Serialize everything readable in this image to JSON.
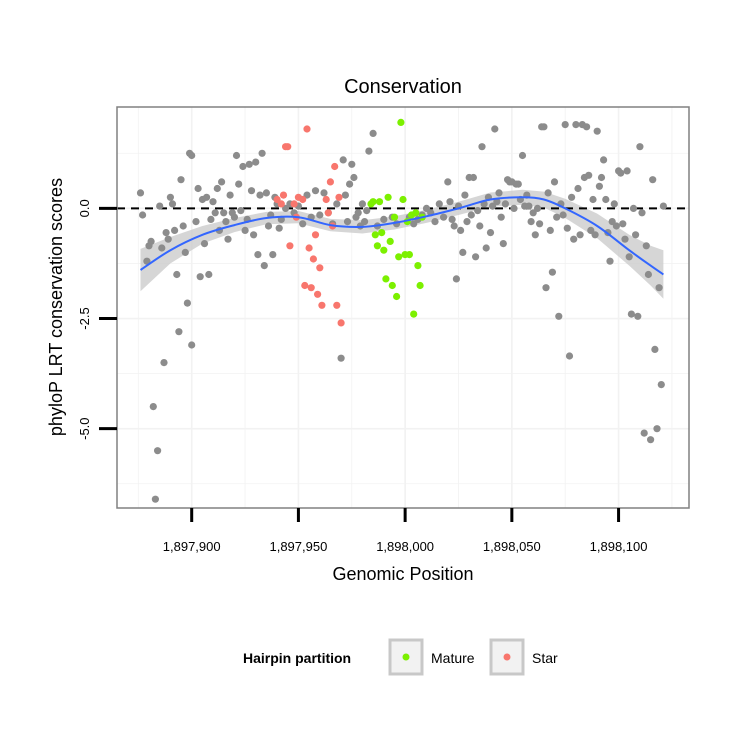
{
  "chart_data": {
    "type": "scatter",
    "title": "Conservation",
    "xlabel": "Genomic Position",
    "ylabel": "phyloP LRT conservation scores",
    "xlim": [
      1897865,
      1898133
    ],
    "ylim": [
      -6.8,
      2.3
    ],
    "x_ticks": [
      1897900,
      1897950,
      1898000,
      1898050,
      1898100
    ],
    "x_tick_labels": [
      "1,897,900",
      "1,897,950",
      "1,898,000",
      "1,898,050",
      "1,898,100"
    ],
    "y_ticks": [
      0,
      -2.5,
      -5
    ],
    "y_tick_labels": [
      "0.0",
      "-2.5",
      "-5.0"
    ],
    "reference_line": {
      "y": 0,
      "style": "dashed",
      "color": "#000000"
    },
    "grid": true,
    "legend": {
      "title": "Hairpin partition",
      "placement": "bottom",
      "entries": [
        {
          "label": "Mature",
          "color": "#7cf000"
        },
        {
          "label": "Star",
          "color": "#f8766d"
        }
      ]
    },
    "colors": {
      "other": "#8c8c8c",
      "mature": "#7cf000",
      "star": "#f8766d",
      "smooth": "#3366ff",
      "band": "#c8c8c8"
    },
    "series": [
      {
        "group": "other",
        "points": [
          [
            1897876,
            0.35
          ],
          [
            1897877,
            -0.15
          ],
          [
            1897879,
            -1.2
          ],
          [
            1897880,
            -0.85
          ],
          [
            1897881,
            -0.75
          ],
          [
            1897882,
            -4.5
          ],
          [
            1897883,
            -6.6
          ],
          [
            1897884,
            -5.5
          ],
          [
            1897885,
            0.05
          ],
          [
            1897886,
            -0.9
          ],
          [
            1897887,
            -3.5
          ],
          [
            1897888,
            -0.55
          ],
          [
            1897889,
            -0.7
          ],
          [
            1897890,
            0.25
          ],
          [
            1897891,
            0.1
          ],
          [
            1897892,
            -0.5
          ],
          [
            1897893,
            -1.5
          ],
          [
            1897894,
            -2.8
          ],
          [
            1897895,
            0.65
          ],
          [
            1897896,
            -0.4
          ],
          [
            1897897,
            -1.0
          ],
          [
            1897898,
            -2.15
          ],
          [
            1897899,
            1.25
          ],
          [
            1897900,
            1.2
          ],
          [
            1897900,
            -3.1
          ],
          [
            1897902,
            -0.3
          ],
          [
            1897903,
            0.45
          ],
          [
            1897904,
            -1.55
          ],
          [
            1897905,
            0.2
          ],
          [
            1897906,
            -0.8
          ],
          [
            1897907,
            0.25
          ],
          [
            1897908,
            -1.5
          ],
          [
            1897909,
            -0.25
          ],
          [
            1897910,
            0.15
          ],
          [
            1897911,
            -0.1
          ],
          [
            1897912,
            0.45
          ],
          [
            1897913,
            -0.5
          ],
          [
            1897914,
            0.6
          ],
          [
            1897915,
            -0.1
          ],
          [
            1897916,
            -0.3
          ],
          [
            1897917,
            -0.7
          ],
          [
            1897918,
            0.3
          ],
          [
            1897919,
            -0.1
          ],
          [
            1897920,
            -0.2
          ],
          [
            1897921,
            1.2
          ],
          [
            1897922,
            0.55
          ],
          [
            1897923,
            -0.05
          ],
          [
            1897924,
            0.95
          ],
          [
            1897925,
            -0.5
          ],
          [
            1897926,
            -0.25
          ],
          [
            1897927,
            1.0
          ],
          [
            1897928,
            0.4
          ],
          [
            1897929,
            -0.6
          ],
          [
            1897930,
            1.05
          ],
          [
            1897931,
            -1.05
          ],
          [
            1897932,
            0.3
          ],
          [
            1897933,
            1.25
          ],
          [
            1897934,
            -1.3
          ],
          [
            1897935,
            0.35
          ],
          [
            1897936,
            -0.4
          ],
          [
            1897937,
            -0.15
          ],
          [
            1897938,
            -1.05
          ],
          [
            1897939,
            0.25
          ],
          [
            1897940,
            0.1
          ],
          [
            1897941,
            -0.45
          ],
          [
            1897942,
            -0.25
          ],
          [
            1897944,
            0.0
          ],
          [
            1897946,
            0.1
          ],
          [
            1897948,
            -0.1
          ],
          [
            1897950,
            0.05
          ],
          [
            1897952,
            -0.35
          ],
          [
            1897954,
            0.3
          ],
          [
            1897956,
            -0.2
          ],
          [
            1897958,
            0.4
          ],
          [
            1897960,
            -0.15
          ],
          [
            1897962,
            0.35
          ],
          [
            1897964,
            -0.1
          ],
          [
            1897966,
            -0.35
          ],
          [
            1897968,
            0.1
          ],
          [
            1897970,
            -3.4
          ],
          [
            1897971,
            1.1
          ],
          [
            1897972,
            0.3
          ],
          [
            1897973,
            -0.3
          ],
          [
            1897974,
            0.55
          ],
          [
            1897975,
            1.0
          ],
          [
            1897976,
            0.7
          ],
          [
            1897977,
            -0.2
          ],
          [
            1897978,
            -0.1
          ],
          [
            1897979,
            -0.4
          ],
          [
            1897980,
            0.1
          ],
          [
            1897981,
            -0.3
          ],
          [
            1897982,
            -0.05
          ],
          [
            1897983,
            1.3
          ],
          [
            1897985,
            1.7
          ],
          [
            1897987,
            -0.4
          ],
          [
            1897990,
            -0.25
          ],
          [
            1897994,
            -0.2
          ],
          [
            1897996,
            -0.35
          ],
          [
            1898002,
            -0.2
          ],
          [
            1898004,
            -0.35
          ],
          [
            1898006,
            -0.25
          ],
          [
            1898008,
            -0.15
          ],
          [
            1898010,
            0.0
          ],
          [
            1898012,
            -0.1
          ],
          [
            1898014,
            -0.3
          ],
          [
            1898016,
            0.1
          ],
          [
            1898018,
            -0.2
          ],
          [
            1898020,
            0.6
          ],
          [
            1898021,
            0.15
          ],
          [
            1898022,
            -0.25
          ],
          [
            1898023,
            -0.4
          ],
          [
            1898024,
            -1.6
          ],
          [
            1898025,
            0.05
          ],
          [
            1898026,
            -0.5
          ],
          [
            1898027,
            -1.0
          ],
          [
            1898028,
            0.3
          ],
          [
            1898029,
            -0.3
          ],
          [
            1898030,
            0.7
          ],
          [
            1898031,
            -0.15
          ],
          [
            1898032,
            0.7
          ],
          [
            1898033,
            -1.1
          ],
          [
            1898034,
            -0.05
          ],
          [
            1898035,
            -0.4
          ],
          [
            1898036,
            1.4
          ],
          [
            1898037,
            0.1
          ],
          [
            1898038,
            -0.9
          ],
          [
            1898039,
            0.25
          ],
          [
            1898040,
            -0.55
          ],
          [
            1898041,
            0.05
          ],
          [
            1898042,
            1.8
          ],
          [
            1898043,
            0.15
          ],
          [
            1898044,
            0.35
          ],
          [
            1898045,
            -0.2
          ],
          [
            1898046,
            -0.8
          ],
          [
            1898047,
            0.1
          ],
          [
            1898048,
            0.65
          ],
          [
            1898049,
            0.6
          ],
          [
            1898050,
            0.6
          ],
          [
            1898051,
            0.0
          ],
          [
            1898052,
            0.55
          ],
          [
            1898053,
            0.55
          ],
          [
            1898054,
            0.2
          ],
          [
            1898055,
            1.2
          ],
          [
            1898056,
            0.05
          ],
          [
            1898057,
            0.3
          ],
          [
            1898058,
            0.05
          ],
          [
            1898059,
            -0.3
          ],
          [
            1898060,
            -0.1
          ],
          [
            1898061,
            -0.6
          ],
          [
            1898062,
            0.0
          ],
          [
            1898063,
            -0.35
          ],
          [
            1898064,
            1.85
          ],
          [
            1898065,
            1.85
          ],
          [
            1898066,
            -1.8
          ],
          [
            1898067,
            0.35
          ],
          [
            1898068,
            -0.5
          ],
          [
            1898069,
            -1.45
          ],
          [
            1898070,
            0.6
          ],
          [
            1898071,
            -0.2
          ],
          [
            1898072,
            -2.45
          ],
          [
            1898073,
            0.1
          ],
          [
            1898074,
            -0.15
          ],
          [
            1898075,
            1.9
          ],
          [
            1898076,
            -0.45
          ],
          [
            1898077,
            -3.35
          ],
          [
            1898078,
            0.25
          ],
          [
            1898079,
            -0.7
          ],
          [
            1898080,
            1.9
          ],
          [
            1898081,
            0.45
          ],
          [
            1898082,
            -0.6
          ],
          [
            1898083,
            1.9
          ],
          [
            1898084,
            0.7
          ],
          [
            1898085,
            1.85
          ],
          [
            1898086,
            0.75
          ],
          [
            1898087,
            -0.5
          ],
          [
            1898088,
            0.2
          ],
          [
            1898089,
            -0.6
          ],
          [
            1898090,
            1.75
          ],
          [
            1898091,
            0.5
          ],
          [
            1898092,
            0.7
          ],
          [
            1898093,
            1.1
          ],
          [
            1898094,
            0.2
          ],
          [
            1898095,
            -0.55
          ],
          [
            1898096,
            -1.2
          ],
          [
            1898097,
            -0.3
          ],
          [
            1898098,
            0.1
          ],
          [
            1898099,
            -0.4
          ],
          [
            1898100,
            0.85
          ],
          [
            1898101,
            0.8
          ],
          [
            1898102,
            -0.35
          ],
          [
            1898103,
            -0.7
          ],
          [
            1898104,
            0.85
          ],
          [
            1898105,
            -1.1
          ],
          [
            1898106,
            -2.4
          ],
          [
            1898107,
            0.0
          ],
          [
            1898108,
            -0.6
          ],
          [
            1898109,
            -2.45
          ],
          [
            1898110,
            1.4
          ],
          [
            1898111,
            -0.1
          ],
          [
            1898112,
            -5.1
          ],
          [
            1898113,
            -0.85
          ],
          [
            1898114,
            -1.5
          ],
          [
            1898115,
            -5.25
          ],
          [
            1898116,
            0.65
          ],
          [
            1898117,
            -3.2
          ],
          [
            1898118,
            -5.0
          ],
          [
            1898119,
            -1.8
          ],
          [
            1898120,
            -4.0
          ],
          [
            1898121,
            0.05
          ]
        ]
      },
      {
        "group": "mature",
        "points": [
          [
            1897984,
            0.1
          ],
          [
            1897985,
            0.15
          ],
          [
            1897986,
            -0.6
          ],
          [
            1897987,
            -0.85
          ],
          [
            1897988,
            0.15
          ],
          [
            1897989,
            -0.55
          ],
          [
            1897990,
            -0.95
          ],
          [
            1897991,
            -1.6
          ],
          [
            1897992,
            0.25
          ],
          [
            1897993,
            -0.75
          ],
          [
            1897994,
            -1.75
          ],
          [
            1897995,
            -0.2
          ],
          [
            1897996,
            -2.0
          ],
          [
            1897997,
            -1.1
          ],
          [
            1897998,
            1.95
          ],
          [
            1897999,
            0.2
          ],
          [
            1898000,
            -1.05
          ],
          [
            1898001,
            -0.3
          ],
          [
            1898002,
            -1.05
          ],
          [
            1898003,
            -0.15
          ],
          [
            1898004,
            -2.4
          ],
          [
            1898005,
            -0.1
          ],
          [
            1898006,
            -1.3
          ],
          [
            1898007,
            -1.75
          ],
          [
            1898008,
            -0.2
          ]
        ]
      },
      {
        "group": "star",
        "points": [
          [
            1897940,
            0.2
          ],
          [
            1897942,
            0.1
          ],
          [
            1897943,
            0.3
          ],
          [
            1897944,
            1.4
          ],
          [
            1897945,
            1.4
          ],
          [
            1897946,
            -0.85
          ],
          [
            1897948,
            0.1
          ],
          [
            1897949,
            -0.2
          ],
          [
            1897950,
            0.25
          ],
          [
            1897952,
            0.2
          ],
          [
            1897953,
            -1.75
          ],
          [
            1897954,
            1.8
          ],
          [
            1897955,
            -0.9
          ],
          [
            1897956,
            -1.8
          ],
          [
            1897957,
            -1.15
          ],
          [
            1897958,
            -0.6
          ],
          [
            1897959,
            -1.95
          ],
          [
            1897960,
            -1.35
          ],
          [
            1897961,
            -2.2
          ],
          [
            1897963,
            0.2
          ],
          [
            1897964,
            -0.1
          ],
          [
            1897965,
            0.6
          ],
          [
            1897966,
            -0.4
          ],
          [
            1897967,
            0.95
          ],
          [
            1897968,
            -2.2
          ],
          [
            1897969,
            0.25
          ],
          [
            1897970,
            -2.6
          ]
        ]
      }
    ],
    "smooth": {
      "x": [
        1897876,
        1897890,
        1897905,
        1897920,
        1897935,
        1897950,
        1897965,
        1897980,
        1897995,
        1898010,
        1898025,
        1898040,
        1898055,
        1898065,
        1898075,
        1898090,
        1898105,
        1898115,
        1898121
      ],
      "y": [
        -1.4,
        -0.95,
        -0.6,
        -0.38,
        -0.22,
        -0.2,
        -0.38,
        -0.42,
        -0.33,
        -0.18,
        0.0,
        0.2,
        0.25,
        0.2,
        0.0,
        -0.4,
        -0.95,
        -1.3,
        -1.5
      ],
      "se": [
        0.48,
        0.3,
        0.2,
        0.16,
        0.14,
        0.14,
        0.14,
        0.15,
        0.15,
        0.15,
        0.15,
        0.16,
        0.17,
        0.18,
        0.22,
        0.28,
        0.35,
        0.45,
        0.55
      ]
    }
  }
}
